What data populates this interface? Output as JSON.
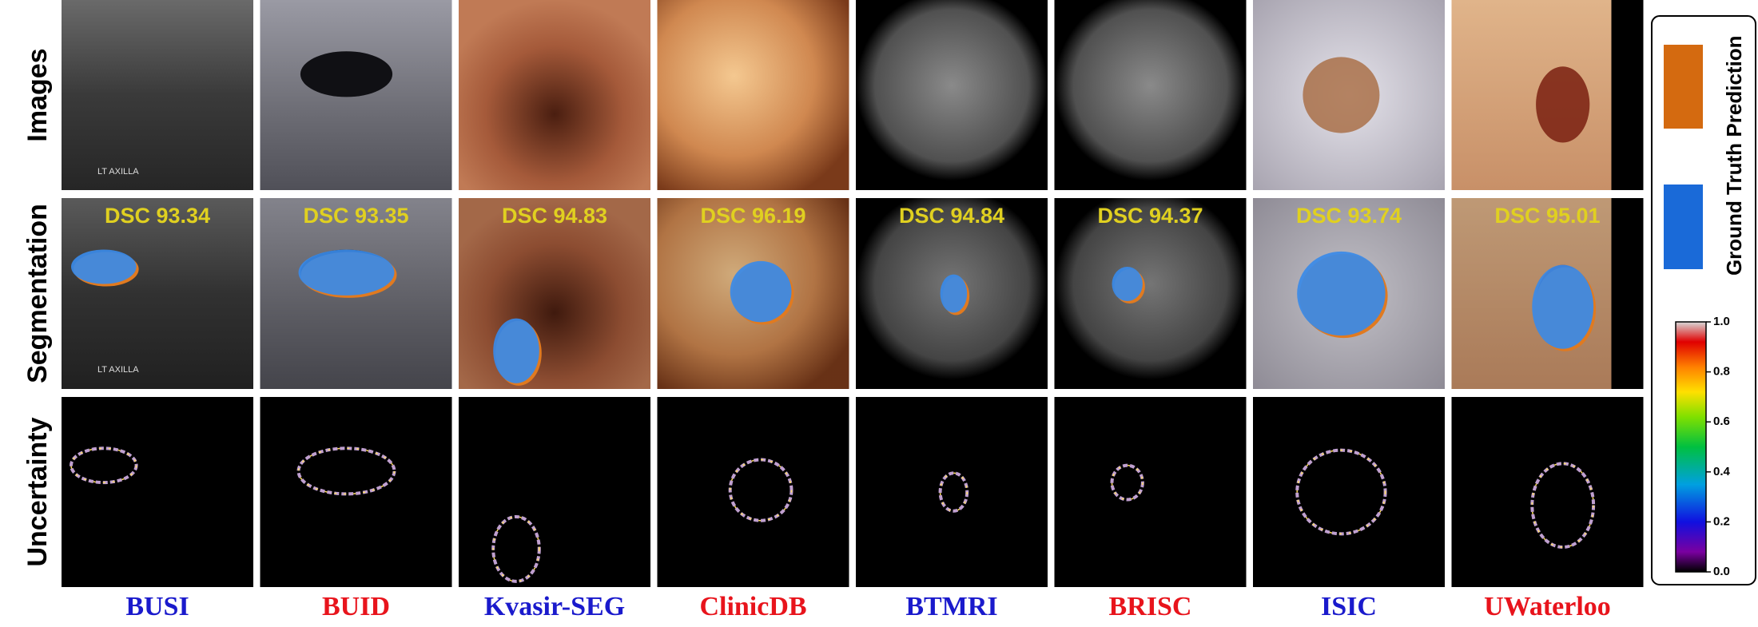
{
  "row_labels": [
    "Images",
    "Segmentation",
    "Uncertainty"
  ],
  "panel_text": "LT AXILLA",
  "columns": [
    {
      "name": "BUSI",
      "color": "#1a1acc",
      "dsc": "DSC 93.34"
    },
    {
      "name": "BUID",
      "color": "#e8141c",
      "dsc": "DSC 93.35"
    },
    {
      "name": "Kvasir-SEG",
      "color": "#1a1acc",
      "dsc": "DSC 94.83"
    },
    {
      "name": "ClinicDB",
      "color": "#e8141c",
      "dsc": "DSC 96.19"
    },
    {
      "name": "BTMRI",
      "color": "#1a1acc",
      "dsc": "DSC 94.84"
    },
    {
      "name": "BRISC",
      "color": "#e8141c",
      "dsc": "DSC 94.37"
    },
    {
      "name": "ISIC",
      "color": "#1a1acc",
      "dsc": "DSC 93.74"
    },
    {
      "name": "UWaterloo",
      "color": "#e8141c",
      "dsc": "DSC 95.01"
    }
  ],
  "legend": {
    "items": [
      "Prediction",
      "Ground Truth"
    ],
    "colorbar_ticks": [
      "0.0",
      "0.2",
      "0.4",
      "0.6",
      "0.8",
      "1.0"
    ]
  }
}
